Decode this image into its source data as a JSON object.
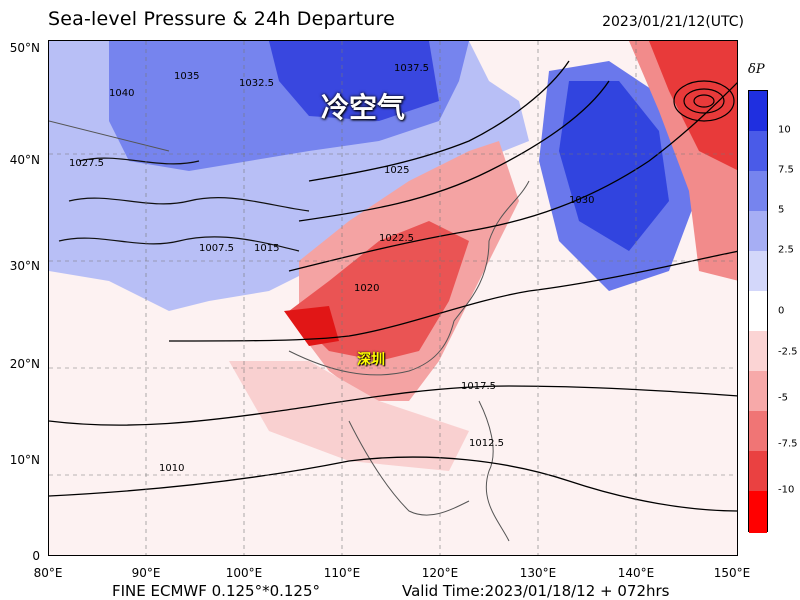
{
  "title": "Sea-level Pressure & 24h Departure",
  "valid_datetime": "2023/01/21/12(UTC)",
  "footer": {
    "model": "FINE ECMWF 0.125°*0.125°",
    "valid_time": "Valid Time:2023/01/18/12 + 072hrs"
  },
  "annotations": {
    "cold_air": "冷空气",
    "city": "深圳"
  },
  "axes": {
    "lat_labels": [
      "50°N",
      "40°N",
      "30°N",
      "20°N",
      "10°N",
      "0"
    ],
    "lon_labels": [
      "80°E",
      "90°E",
      "100°E",
      "110°E",
      "120°E",
      "130°E",
      "140°E",
      "150°E"
    ]
  },
  "colorbar": {
    "title": "δP",
    "ticks": [
      "10",
      "7.5",
      "5",
      "2.5",
      "0",
      "-2.5",
      "-5",
      "-7.5",
      "-10"
    ],
    "colors": [
      "#1f2fe0",
      "#4a5be8",
      "#7684ee",
      "#a6aef4",
      "#d3d7fa",
      "#ffffff",
      "#fbd4d4",
      "#f7a9a9",
      "#f07575",
      "#ea4141",
      "#ff0000"
    ]
  },
  "isobar_labels": [
    {
      "text": "1040"
    },
    {
      "text": "1035"
    },
    {
      "text": "1032.5"
    },
    {
      "text": "1030"
    },
    {
      "text": "1027.5"
    },
    {
      "text": "1025"
    },
    {
      "text": "1022.5"
    },
    {
      "text": "1020"
    },
    {
      "text": "1017.5"
    },
    {
      "text": "1015"
    },
    {
      "text": "1012.5"
    },
    {
      "text": "1010"
    },
    {
      "text": "1007.5"
    },
    {
      "text": "1037.5"
    }
  ]
}
